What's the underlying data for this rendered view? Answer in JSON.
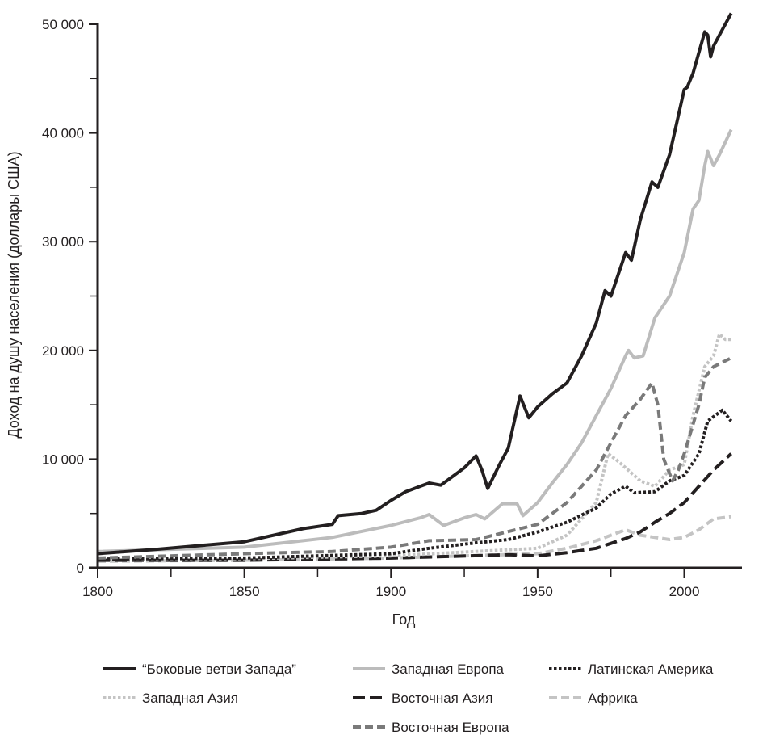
{
  "chart_data": {
    "type": "line",
    "title": "",
    "xlabel": "Год",
    "ylabel": "Доход на душу населения (доллары США)",
    "xlim": [
      1800,
      2020
    ],
    "ylim": [
      0,
      50000
    ],
    "x_ticks": [
      1800,
      1850,
      1900,
      1950,
      2000
    ],
    "x_tick_labels": [
      "1800",
      "1850",
      "1900",
      "1950",
      "2000"
    ],
    "x_minor_ticks": [
      1825,
      1875,
      1925,
      1975
    ],
    "y_ticks": [
      0,
      10000,
      20000,
      30000,
      40000,
      50000
    ],
    "y_tick_labels": [
      "0",
      "10 000",
      "20 000",
      "30 000",
      "40 000",
      "50 000"
    ],
    "y_minor_ticks": [
      5000,
      15000,
      25000,
      35000,
      45000
    ],
    "grid": false,
    "legend_position": "bottom",
    "series": [
      {
        "name": "“Боковые ветви Запада”",
        "color": "#231f20",
        "style": "solid",
        "x": [
          1800,
          1820,
          1850,
          1870,
          1880,
          1882,
          1890,
          1895,
          1900,
          1905,
          1910,
          1913,
          1917,
          1920,
          1925,
          1929,
          1931,
          1933,
          1937,
          1940,
          1944,
          1947,
          1950,
          1955,
          1960,
          1965,
          1970,
          1973,
          1975,
          1980,
          1982,
          1985,
          1989,
          1991,
          1995,
          2000,
          2001,
          2003,
          2007,
          2008,
          2009,
          2010,
          2013,
          2016
        ],
        "y": [
          1300,
          1700,
          2400,
          3600,
          4000,
          4800,
          5000,
          5300,
          6200,
          7000,
          7500,
          7800,
          7600,
          8200,
          9200,
          10300,
          9000,
          7300,
          9500,
          11000,
          15800,
          13800,
          14800,
          16000,
          17000,
          19500,
          22500,
          25500,
          25000,
          29000,
          28300,
          32000,
          35500,
          35000,
          38000,
          44000,
          44200,
          45500,
          49300,
          49000,
          47000,
          48000,
          49500,
          51000
        ]
      },
      {
        "name": "Западная Европа",
        "color": "#bcbcbc",
        "style": "solid",
        "x": [
          1800,
          1850,
          1870,
          1880,
          1900,
          1910,
          1913,
          1918,
          1925,
          1929,
          1932,
          1938,
          1943,
          1945,
          1950,
          1955,
          1960,
          1965,
          1970,
          1975,
          1980,
          1981,
          1983,
          1986,
          1990,
          1995,
          2000,
          2003,
          2005,
          2007,
          2008,
          2010,
          2012,
          2016
        ],
        "y": [
          1500,
          1900,
          2500,
          2800,
          3900,
          4600,
          4900,
          3900,
          4600,
          4900,
          4500,
          5900,
          5900,
          4800,
          6000,
          7800,
          9500,
          11500,
          14000,
          16500,
          19500,
          20000,
          19300,
          19500,
          23000,
          25000,
          29000,
          33000,
          33800,
          37000,
          38300,
          37000,
          38000,
          40300
        ]
      },
      {
        "name": "Латинская Америка",
        "color": "#231f20",
        "style": "dotted",
        "x": [
          1800,
          1850,
          1900,
          1913,
          1929,
          1940,
          1950,
          1960,
          1970,
          1975,
          1980,
          1983,
          1990,
          1995,
          2000,
          2005,
          2008,
          2013,
          2016
        ],
        "y": [
          800,
          900,
          1300,
          1800,
          2300,
          2600,
          3300,
          4200,
          5500,
          6800,
          7500,
          6900,
          7000,
          8000,
          8500,
          10500,
          13500,
          14500,
          13500
        ]
      },
      {
        "name": "Западная Азия",
        "color": "#c4c4c4",
        "style": "dotted",
        "x": [
          1800,
          1850,
          1900,
          1950,
          1960,
          1970,
          1974,
          1977,
          1980,
          1985,
          1990,
          1995,
          2000,
          2003,
          2007,
          2010,
          2012,
          2014,
          2016
        ],
        "y": [
          800,
          850,
          1100,
          1800,
          3000,
          6000,
          10500,
          9900,
          9200,
          8000,
          7500,
          9000,
          9500,
          14000,
          18500,
          19500,
          21500,
          21000,
          21000
        ]
      },
      {
        "name": "Восточная Азия",
        "color": "#231f20",
        "style": "longdash",
        "x": [
          1800,
          1850,
          1900,
          1940,
          1950,
          1960,
          1970,
          1980,
          1985,
          1990,
          1995,
          2000,
          2005,
          2010,
          2016
        ],
        "y": [
          700,
          700,
          900,
          1200,
          1100,
          1400,
          1800,
          2700,
          3300,
          4200,
          5000,
          6000,
          7500,
          9000,
          10500
        ]
      },
      {
        "name": "Африка",
        "color": "#c4c4c4",
        "style": "dash",
        "x": [
          1800,
          1850,
          1900,
          1950,
          1960,
          1970,
          1975,
          1980,
          1985,
          1990,
          1995,
          2000,
          2005,
          2010,
          2016
        ],
        "y": [
          600,
          700,
          900,
          1300,
          1800,
          2500,
          3000,
          3500,
          3000,
          2800,
          2600,
          2800,
          3500,
          4500,
          4700
        ]
      },
      {
        "name": "Восточная Европа",
        "color": "#7a7a7a",
        "style": "dash",
        "x": [
          1800,
          1850,
          1880,
          1900,
          1913,
          1929,
          1938,
          1950,
          1960,
          1970,
          1975,
          1980,
          1985,
          1989,
          1991,
          1993,
          1996,
          1998,
          2000,
          2005,
          2007,
          2010,
          2016
        ],
        "y": [
          900,
          1300,
          1500,
          1900,
          2500,
          2600,
          3200,
          4000,
          6000,
          9000,
          11500,
          14000,
          15500,
          17000,
          15000,
          10000,
          8000,
          9000,
          10500,
          15000,
          17500,
          18500,
          19300
        ]
      }
    ]
  }
}
